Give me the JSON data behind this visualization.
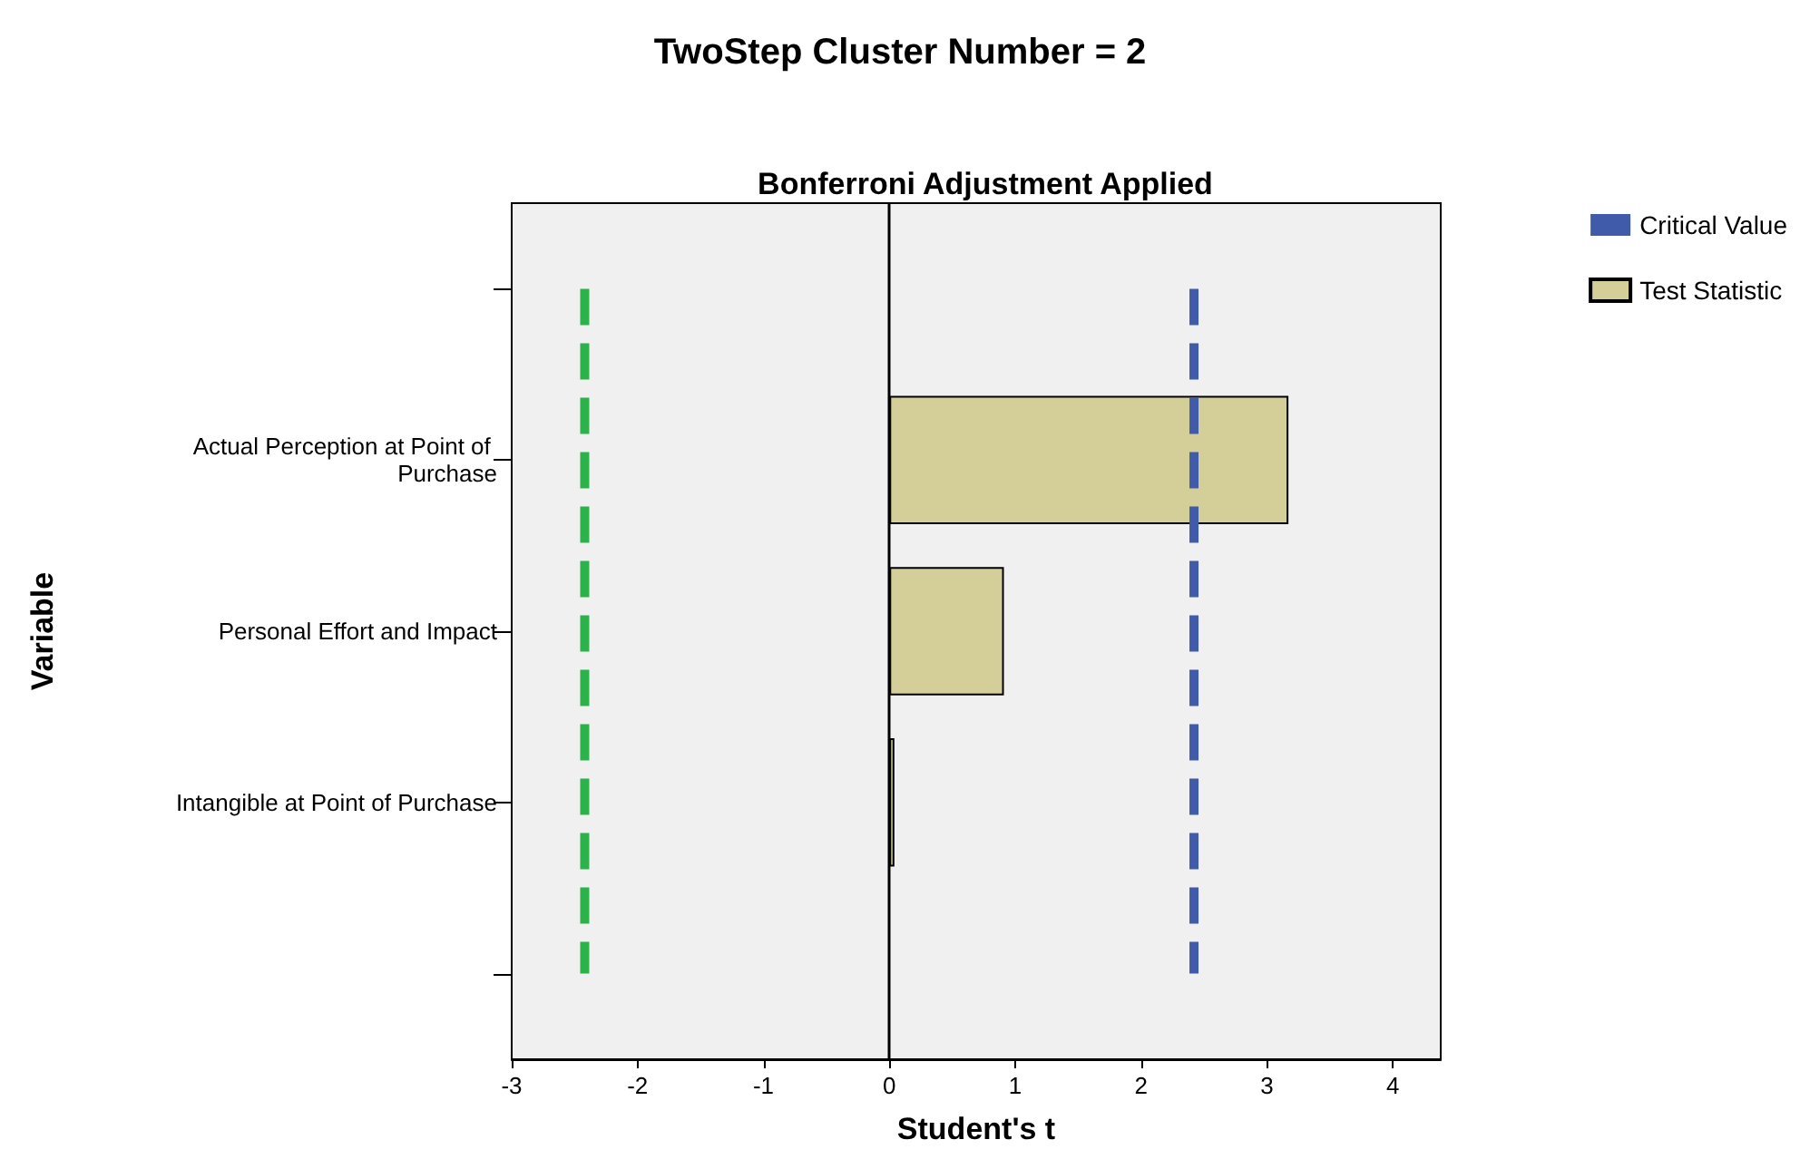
{
  "chart_data": {
    "type": "bar",
    "orientation": "horizontal",
    "title": "TwoStep Cluster Number = 2",
    "subtitle": "Bonferroni Adjustment Applied",
    "xlabel": "Student's t",
    "ylabel": "Variable",
    "categories": [
      null,
      "Actual Perception at Point of Purchase",
      "Personal Effort and Impact",
      "Intangible at Point of Purchase",
      null
    ],
    "series": [
      {
        "name": "Critical Value",
        "type": "line",
        "color": "#3f5ba9",
        "line_style": "dashed",
        "values": [
          2.42,
          2.42,
          2.42,
          2.42,
          2.42
        ]
      },
      {
        "type": "line",
        "color": "#2bb34a",
        "line_style": "dashed",
        "values": [
          -2.42,
          -2.42,
          -2.42,
          -2.42,
          -2.42
        ]
      },
      {
        "name": "Test Statistic",
        "color": "#d4ce98",
        "values": [
          null,
          3.17,
          0.91,
          0.04,
          null
        ]
      }
    ],
    "xlim": [
      -3,
      4.38
    ],
    "xticks": [
      -3,
      -2,
      -1,
      0,
      1,
      2,
      3,
      4
    ],
    "ref_lines": [
      {
        "axis": "x",
        "value": 0,
        "color": "#000000"
      }
    ],
    "grid": false,
    "legend": "top right",
    "marker": "none"
  }
}
